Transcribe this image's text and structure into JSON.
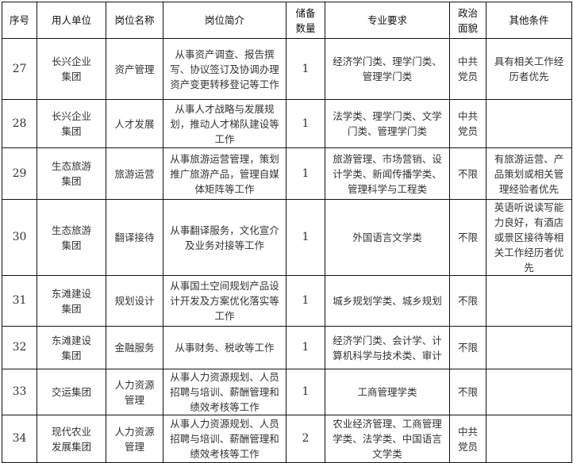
{
  "headers": [
    "序号",
    "用人单位",
    "岗位名称",
    "岗位简介",
    "储备数量",
    "专业要求",
    "政治面貌",
    "其他条件"
  ],
  "rows": [
    {
      "no": "27",
      "unit": "长兴企业集团",
      "post": "资产管理",
      "desc": "从事资产调查、报告撰写、协议签订及协调办理资产变更转移登记等工作",
      "count": "1",
      "major": "经济学门类、理学门类、管理学门类",
      "political": "中共党员",
      "other": "具有相关工作经历者优先"
    },
    {
      "no": "28",
      "unit": "长兴企业集团",
      "post": "人才发展",
      "desc": "从事人才战略与发展规划，推动人才梯队建设等工作",
      "count": "1",
      "major": "法学类、理学门类、文学门类、管理学门类",
      "political": "中共党员",
      "other": ""
    },
    {
      "no": "29",
      "unit": "生态旅游集团",
      "post": "旅游运营",
      "desc": "从事旅游运营管理，策划推广旅游产品，管理自媒体矩阵等工作",
      "count": "1",
      "major": "旅游管理、市场营销、设计学类、新闻传播学类、管理科学与工程类",
      "political": "不限",
      "other": "有旅游运营、产品策划或相关管理经验者优先"
    },
    {
      "no": "30",
      "unit": "生态旅游集团",
      "post": "翻译接待",
      "desc": "从事翻译服务，文化宣介及业务对接等工作",
      "count": "1",
      "major": "外国语言文学类",
      "political": "不限",
      "other": "英语听说读写能力良好，有酒店或景区接待等相关工作经历者优先"
    },
    {
      "no": "31",
      "unit": "东滩建设集团",
      "post": "规划设计",
      "desc": "从事国土空间规划产品设计开发及方案优化落实等工作",
      "count": "1",
      "major": "城乡规划学类、城乡规划",
      "political": "不限",
      "other": ""
    },
    {
      "no": "32",
      "unit": "东滩建设集团",
      "post": "金融服务",
      "desc": "从事财务、税收等工作",
      "count": "1",
      "major": "经济学门类、会计学、计算机科学与技术类、审计",
      "political": "不限",
      "other": ""
    },
    {
      "no": "33",
      "unit": "交运集团",
      "post": "人力资源管理",
      "desc": "从事人力资源规划、人员招聘与培训、薪酬管理和绩效考核等工作",
      "count": "1",
      "major": "工商管理学类",
      "political": "不限",
      "other": ""
    },
    {
      "no": "34",
      "unit": "现代农业发展集团",
      "post": "人力资源管理",
      "desc": "从事人力资源规划、人员招聘与培训、薪酬管理和绩效考核等工作",
      "count": "2",
      "major": "农业经济管理、工商管理学类、法学类、中国语言文学类",
      "political": "中共党员",
      "other": ""
    }
  ]
}
